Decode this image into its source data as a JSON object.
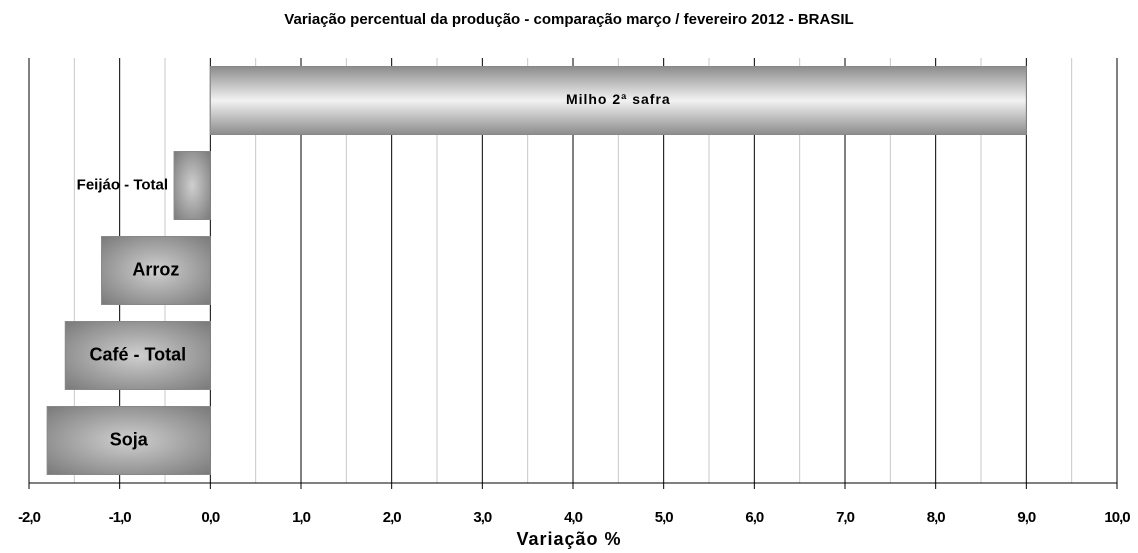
{
  "chart_data": {
    "type": "hbar",
    "title": "Variação percentual da produção - comparação março /  fevereiro 2012 - BRASIL",
    "x_label": "Variação %",
    "categories": [
      "Milho 2ª safra",
      "Feijáo - Total",
      "Arroz",
      "Café - Total",
      "Soja"
    ],
    "values": [
      9.0,
      -0.4,
      -1.2,
      -1.6,
      -1.8
    ],
    "color": "#a6a6a6",
    "xlim": [
      -2,
      10
    ],
    "xticks": [
      {
        "value": -2,
        "label": "-2,0"
      },
      {
        "value": -1,
        "label": "-1,0"
      },
      {
        "value": 0,
        "label": "0,0"
      },
      {
        "value": 1,
        "label": "1,0"
      },
      {
        "value": 2,
        "label": "2,0"
      },
      {
        "value": 3,
        "label": "3,0"
      },
      {
        "value": 4,
        "label": "4,0"
      },
      {
        "value": 5,
        "label": "5,0"
      },
      {
        "value": 6,
        "label": "6,0"
      },
      {
        "value": 7,
        "label": "7,0"
      },
      {
        "value": 8,
        "label": "8,0"
      },
      {
        "value": 9,
        "label": "9,0"
      },
      {
        "value": 10,
        "label": "10,0"
      }
    ],
    "xminor": [
      -1.5,
      -0.5,
      0.5,
      1.5,
      2.5,
      3.5,
      4.5,
      5.5,
      6.5,
      7.5,
      8.5,
      9.5
    ],
    "grid": true
  }
}
